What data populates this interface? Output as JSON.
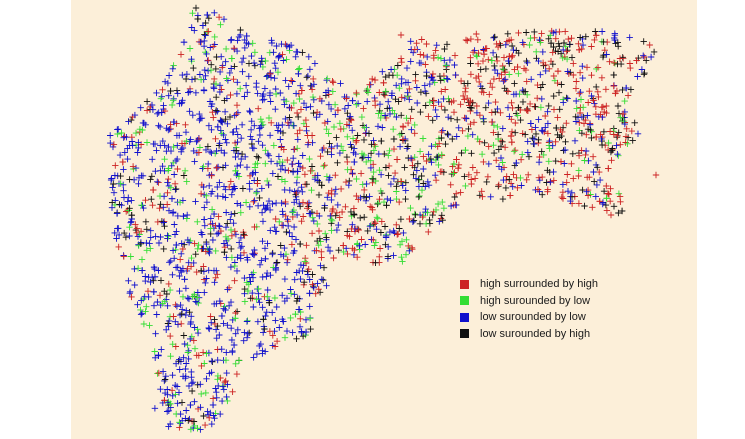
{
  "map": {
    "region": "Maharashtra",
    "marker_style": "plus",
    "categories": [
      {
        "key": "hh",
        "label": "high surrounded by high",
        "color": "#cc2222"
      },
      {
        "key": "hl",
        "label": "high surounded by low",
        "color": "#33dd33"
      },
      {
        "key": "ll",
        "label": "low surounded by low",
        "color": "#1111cc"
      },
      {
        "key": "lh",
        "label": "low surounded by high",
        "color": "#111111"
      }
    ],
    "background_color": "#fcefd9"
  },
  "legend": {
    "placement": "bottom-right"
  }
}
